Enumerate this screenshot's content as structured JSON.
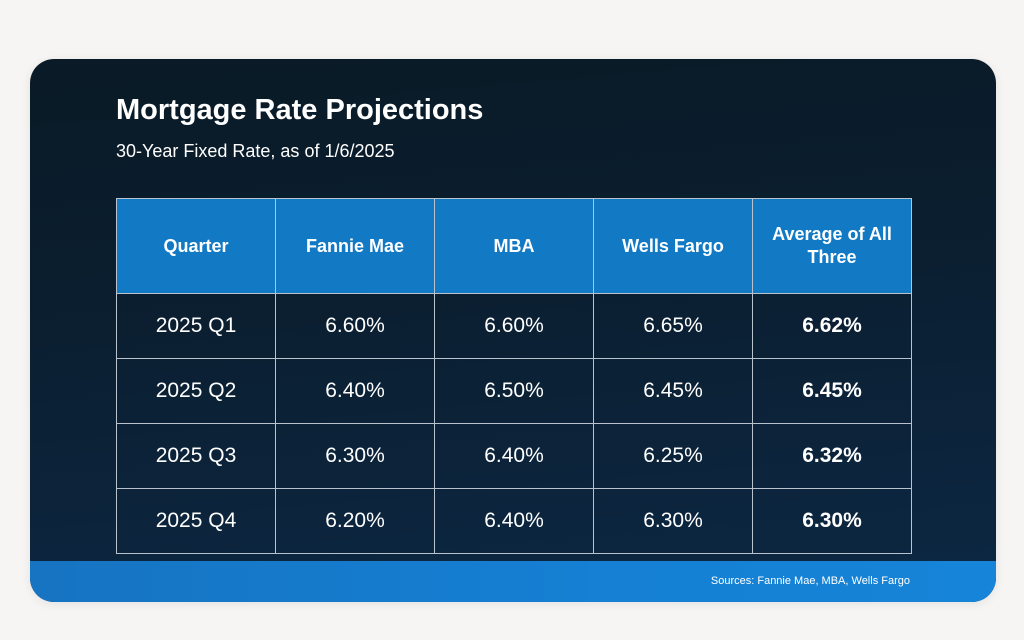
{
  "title": "Mortgage Rate Projections",
  "subtitle": "30-Year Fixed Rate, as of 1/6/2025",
  "sources": "Sources: Fannie Mae, MBA, Wells Fargo",
  "colors": {
    "header_blue": "#1279c5",
    "background_navy": "#0b1f31",
    "footer_blue": "#1580d4"
  },
  "chart_data": {
    "type": "table",
    "title": "Mortgage Rate Projections",
    "subtitle": "30-Year Fixed Rate, as of 1/6/2025",
    "columns": [
      "Quarter",
      "Fannie Mae",
      "MBA",
      "Wells Fargo",
      "Average of All Three"
    ],
    "rows": [
      [
        "2025 Q1",
        "6.60%",
        "6.60%",
        "6.65%",
        "6.62%"
      ],
      [
        "2025 Q2",
        "6.40%",
        "6.50%",
        "6.45%",
        "6.45%"
      ],
      [
        "2025 Q3",
        "6.30%",
        "6.40%",
        "6.25%",
        "6.32%"
      ],
      [
        "2025 Q4",
        "6.20%",
        "6.40%",
        "6.30%",
        "6.30%"
      ]
    ]
  }
}
